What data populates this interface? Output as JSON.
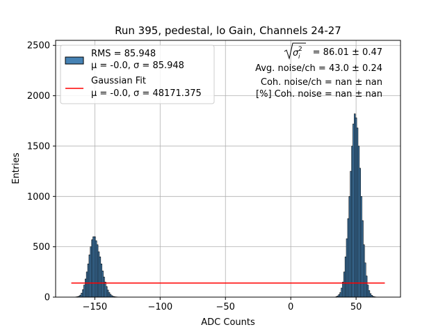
{
  "chart_data": {
    "type": "bar",
    "title": "Run 395, pedestal, lo Gain, Channels 24-27",
    "xlabel": "ADC Counts",
    "ylabel": "Entries",
    "xlim": [
      -180,
      84
    ],
    "ylim": [
      0,
      2550
    ],
    "grid": true,
    "legend_placement": "upper-left",
    "xticks": [
      {
        "value": -150,
        "label": "−150"
      },
      {
        "value": -100,
        "label": "−100"
      },
      {
        "value": -50,
        "label": "−50"
      },
      {
        "value": 0,
        "label": "0"
      },
      {
        "value": 50,
        "label": "50"
      }
    ],
    "yticks": [
      {
        "value": 0,
        "label": "0"
      },
      {
        "value": 500,
        "label": "500"
      },
      {
        "value": 1000,
        "label": "1000"
      },
      {
        "value": 1500,
        "label": "1500"
      },
      {
        "value": 2000,
        "label": "2000"
      },
      {
        "value": 2500,
        "label": "2500"
      }
    ],
    "histogram": {
      "name_line1": "RMS = 85.948",
      "name_line2": "μ = -0.0, σ = 85.948",
      "color": "#4682b4",
      "edge_color": "#000000",
      "bin_width": 1,
      "x": [
        -164,
        -163,
        -162,
        -161,
        -160,
        -159,
        -158,
        -157,
        -156,
        -155,
        -154,
        -153,
        -152,
        -151,
        -150,
        -149,
        -148,
        -147,
        -146,
        -145,
        -144,
        -143,
        -142,
        -141,
        -140,
        -139,
        -138,
        -137,
        -136,
        -135,
        -134,
        -133,
        35,
        36,
        37,
        38,
        39,
        40,
        41,
        42,
        43,
        44,
        45,
        46,
        47,
        48,
        49,
        50,
        51,
        52,
        53,
        54,
        55,
        56,
        57,
        58,
        59,
        60,
        61,
        62,
        63,
        64,
        65,
        66
      ],
      "values": [
        3,
        5,
        10,
        20,
        40,
        75,
        120,
        180,
        250,
        330,
        420,
        500,
        570,
        600,
        600,
        560,
        520,
        450,
        400,
        330,
        260,
        200,
        150,
        105,
        70,
        45,
        28,
        15,
        8,
        5,
        3,
        2,
        5,
        12,
        25,
        45,
        90,
        150,
        250,
        400,
        580,
        780,
        1000,
        1250,
        1500,
        1720,
        1820,
        1780,
        1680,
        1500,
        1280,
        1000,
        760,
        520,
        340,
        210,
        120,
        65,
        35,
        18,
        8,
        4,
        2,
        1
      ]
    },
    "fit": {
      "name_line1": "Gaussian Fit",
      "name_line2": "μ = -0.0, σ = 48171.375",
      "color": "#ff0000",
      "x": [
        -168,
        72
      ],
      "y": [
        140,
        140
      ]
    },
    "annotations": {
      "sqrt_value": " = 86.01 ± 0.47",
      "line2": "Avg. noise/ch = 43.0 ± 0.24",
      "line3": "Coh. noise/ch = nan ± nan",
      "line4": "[%] Coh. noise = nan ± nan"
    }
  }
}
